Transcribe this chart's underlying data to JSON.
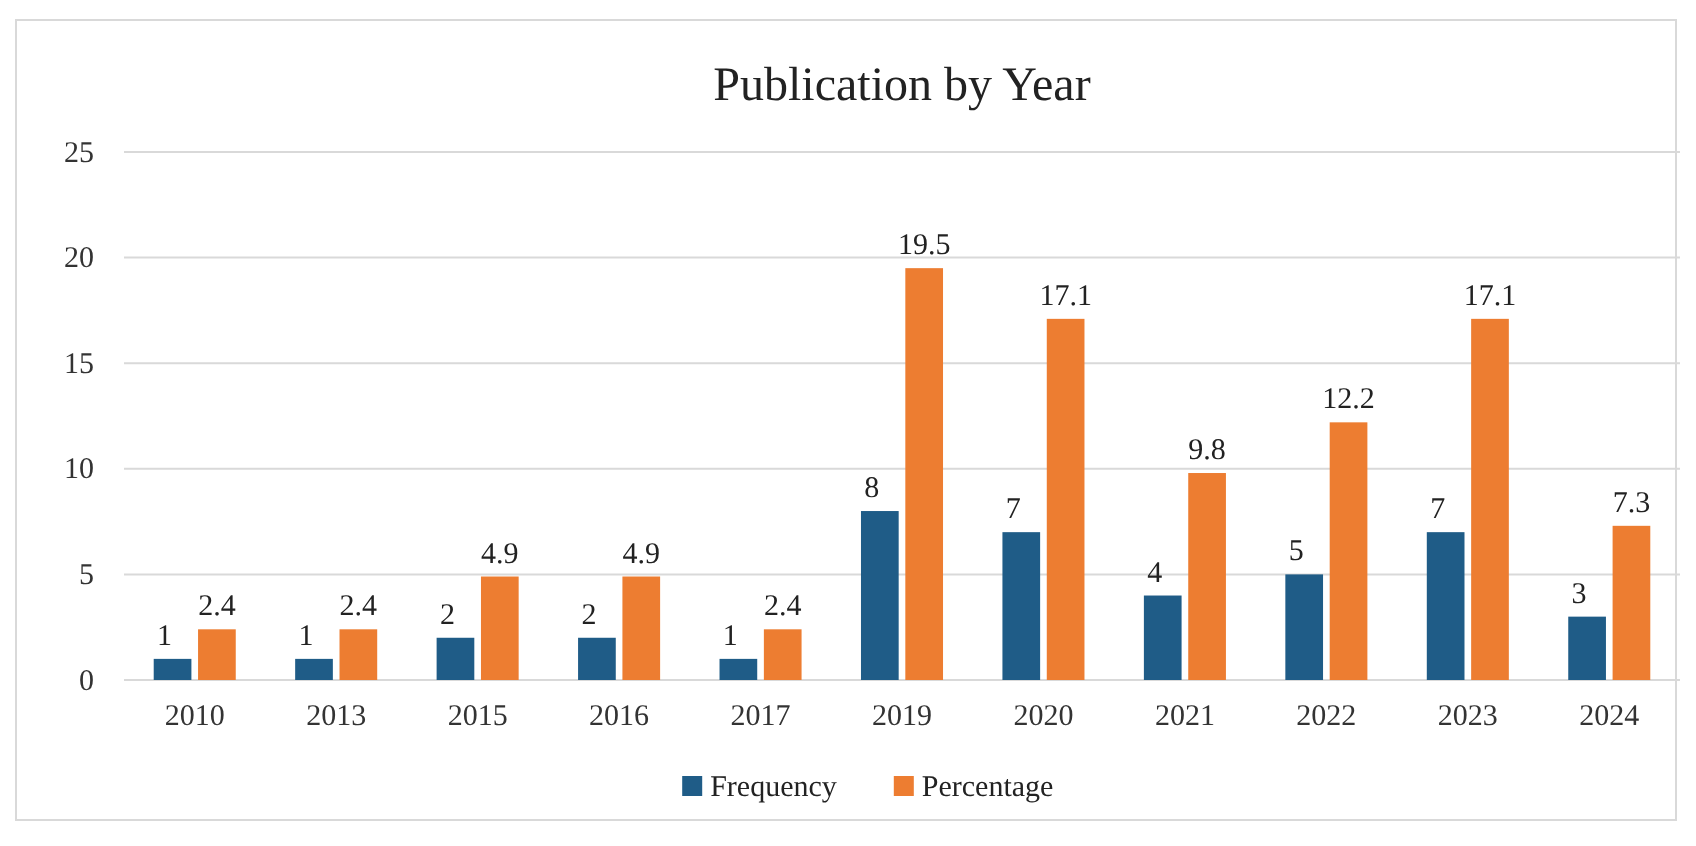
{
  "chart_data": {
    "type": "bar",
    "title": "Publication by Year",
    "categories": [
      "2010",
      "2013",
      "2015",
      "2016",
      "2017",
      "2019",
      "2020",
      "2021",
      "2022",
      "2023",
      "2024"
    ],
    "series": [
      {
        "name": "Frequency",
        "color": "#1f5c87",
        "values": [
          1,
          1,
          2,
          2,
          1,
          8,
          7,
          4,
          5,
          7,
          3
        ]
      },
      {
        "name": "Percentage",
        "color": "#ed7d31",
        "values": [
          2.4,
          2.4,
          4.9,
          4.9,
          2.4,
          19.5,
          17.1,
          9.8,
          12.2,
          17.1,
          7.3
        ]
      }
    ],
    "ylim": [
      0,
      25
    ],
    "yticks": [
      0,
      5,
      10,
      15,
      20,
      25
    ],
    "grid": "y",
    "legend": "bottom",
    "data_labels": true
  }
}
